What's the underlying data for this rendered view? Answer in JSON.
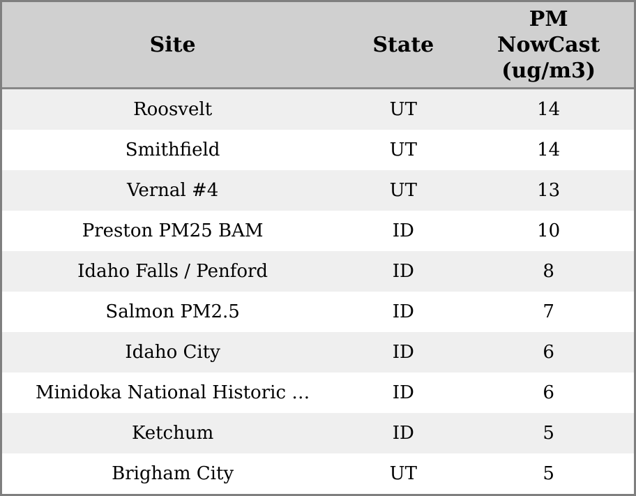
{
  "colors": {
    "header_bg": "#d0d0d0",
    "stripe_row_bg": "#efefef",
    "plain_row_bg": "#ffffff",
    "outer_border": "#7f7f7f",
    "header_divider": "#878787",
    "text": "#000000"
  },
  "table": {
    "header": {
      "site": "Site",
      "state": "State",
      "pm_line1": "PM",
      "pm_line2": "NowCast",
      "pm_line3": "(ug/m3)"
    },
    "rows": [
      {
        "site": "Roosvelt",
        "state": "UT",
        "pm": "14"
      },
      {
        "site": "Smithfield",
        "state": "UT",
        "pm": "14"
      },
      {
        "site": "Vernal #4",
        "state": "UT",
        "pm": "13"
      },
      {
        "site": "Preston PM25 BAM",
        "state": "ID",
        "pm": "10"
      },
      {
        "site": "Idaho Falls / Penford",
        "state": "ID",
        "pm": "8"
      },
      {
        "site": "Salmon PM2.5",
        "state": "ID",
        "pm": "7"
      },
      {
        "site": "Idaho City",
        "state": "ID",
        "pm": "6"
      },
      {
        "site": "Minidoka National Historic …",
        "state": "ID",
        "pm": "6"
      },
      {
        "site": "Ketchum",
        "state": "ID",
        "pm": "5"
      },
      {
        "site": "Brigham City",
        "state": "UT",
        "pm": "5"
      }
    ]
  },
  "chart_data": {
    "type": "table",
    "columns": [
      "Site",
      "State",
      "PM NowCast (ug/m3)"
    ],
    "rows": [
      [
        "Roosvelt",
        "UT",
        14
      ],
      [
        "Smithfield",
        "UT",
        14
      ],
      [
        "Vernal #4",
        "UT",
        13
      ],
      [
        "Preston PM25 BAM",
        "ID",
        10
      ],
      [
        "Idaho Falls / Penford",
        "ID",
        8
      ],
      [
        "Salmon PM2.5",
        "ID",
        7
      ],
      [
        "Idaho City",
        "ID",
        6
      ],
      [
        "Minidoka National Historic …",
        "ID",
        6
      ],
      [
        "Ketchum",
        "ID",
        5
      ],
      [
        "Brigham City",
        "UT",
        5
      ]
    ],
    "layout_hints": {
      "striped_rows": true,
      "alignment": "center",
      "sorted_by": "PM NowCast (ug/m3) descending"
    }
  }
}
